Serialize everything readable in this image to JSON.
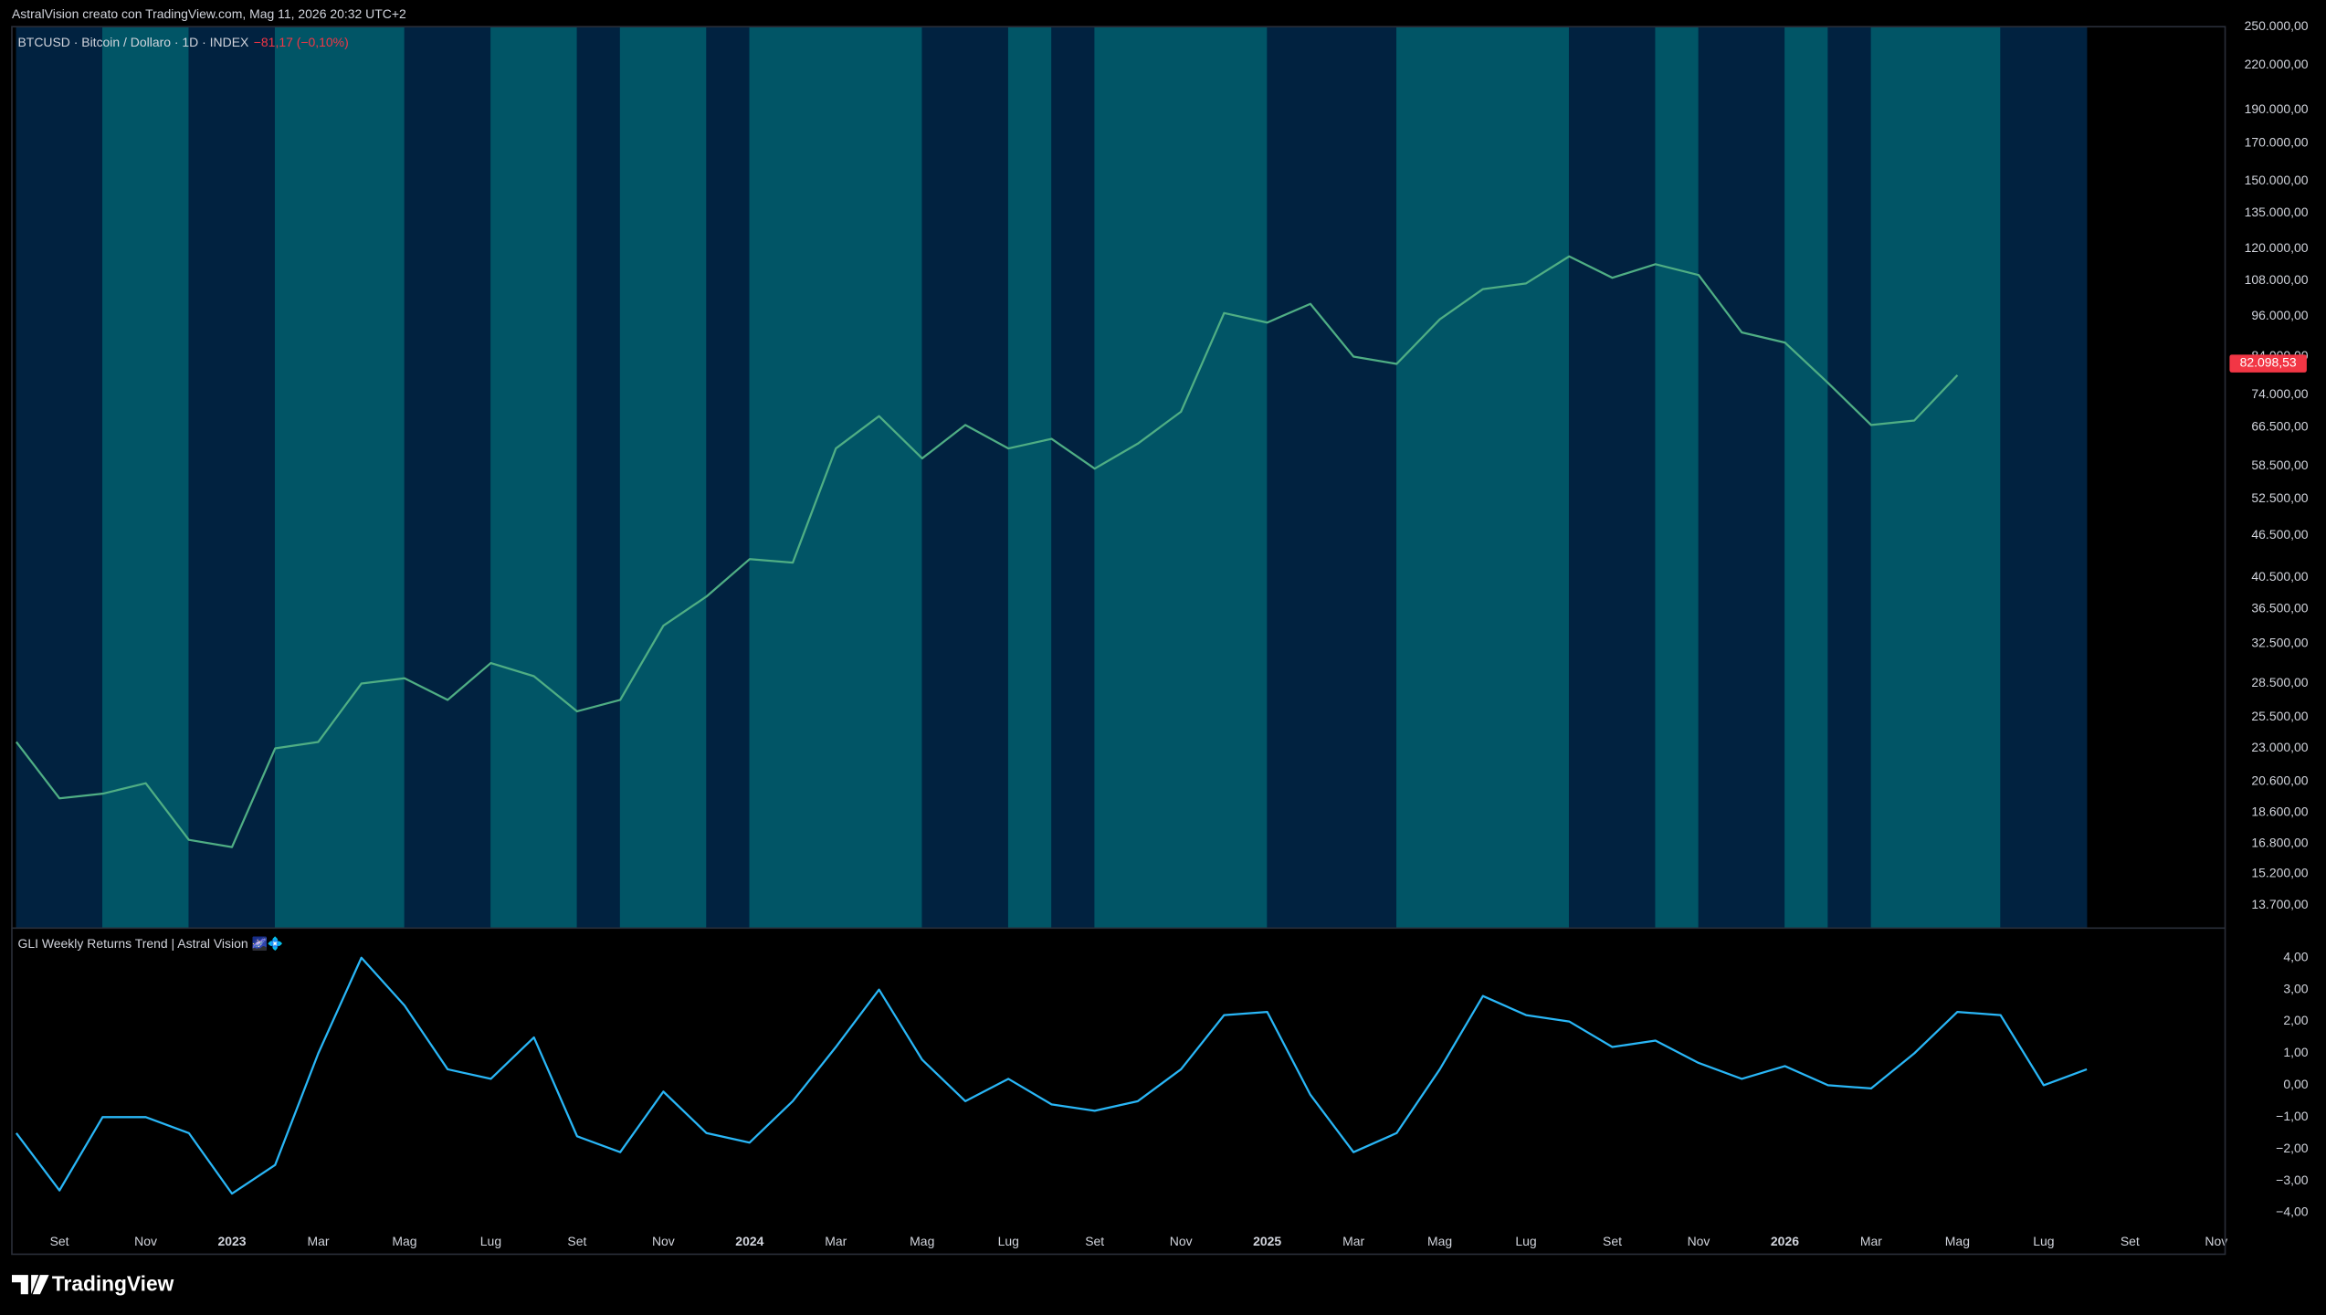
{
  "header": {
    "text": "AstralVision creato con TradingView.com, Mag 11, 2026 20:32 UTC+2"
  },
  "footer": {
    "logo": "TradingView"
  },
  "chart_data": [
    {
      "type": "line",
      "title": "BTCUSD · Bitcoin / Dollaro · 1D · INDEX",
      "change": "−81,17 (−0,10%)",
      "log_scale": true,
      "xlim": [
        "2022-08",
        "2026-11"
      ],
      "ylim": [
        12700,
        250000
      ],
      "x": [
        "2022-08",
        "2022-09",
        "2022-10",
        "2022-11",
        "2022-12",
        "2023-01",
        "2023-02",
        "2023-03",
        "2023-04",
        "2023-05",
        "2023-06",
        "2023-07",
        "2023-08",
        "2023-09",
        "2023-10",
        "2023-11",
        "2023-12",
        "2024-01",
        "2024-02",
        "2024-03",
        "2024-04",
        "2024-05",
        "2024-06",
        "2024-07",
        "2024-08",
        "2024-09",
        "2024-10",
        "2024-11",
        "2024-12",
        "2025-01",
        "2025-02",
        "2025-03",
        "2025-04",
        "2025-05",
        "2025-06",
        "2025-07",
        "2025-08",
        "2025-09",
        "2025-10",
        "2025-11",
        "2025-12",
        "2026-01",
        "2026-02",
        "2026-03",
        "2026-04",
        "2026-05"
      ],
      "series": [
        {
          "color": "#4fae84",
          "values": [
            23500,
            19500,
            19800,
            20500,
            17000,
            16600,
            23000,
            23500,
            28500,
            29000,
            27000,
            30500,
            29200,
            26000,
            27000,
            34500,
            38000,
            43000,
            42500,
            62000,
            69000,
            60000,
            67000,
            62000,
            64000,
            58000,
            63000,
            70000,
            97000,
            94000,
            100000,
            84000,
            82000,
            95000,
            105000,
            107000,
            117000,
            109000,
            114000,
            110000,
            91000,
            88000,
            77000,
            67000,
            68000,
            79000
          ]
        }
      ],
      "last_value": {
        "value": 82098.53,
        "label": "82.098,53"
      },
      "last_value_color": "#f23645",
      "regions": [
        {
          "start": "2022-08",
          "end": "2022-10",
          "color": "#012240"
        },
        {
          "start": "2022-10",
          "end": "2022-12",
          "color": "#015566"
        },
        {
          "start": "2022-12",
          "end": "2023-02",
          "color": "#012240"
        },
        {
          "start": "2023-02",
          "end": "2023-05",
          "color": "#015566"
        },
        {
          "start": "2023-05",
          "end": "2023-07",
          "color": "#012240"
        },
        {
          "start": "2023-07",
          "end": "2023-09",
          "color": "#015566"
        },
        {
          "start": "2023-09",
          "end": "2023-10",
          "color": "#012240"
        },
        {
          "start": "2023-10",
          "end": "2023-12",
          "color": "#015566"
        },
        {
          "start": "2023-12",
          "end": "2024-01",
          "color": "#012240"
        },
        {
          "start": "2024-01",
          "end": "2024-05",
          "color": "#015566"
        },
        {
          "start": "2024-05",
          "end": "2024-07",
          "color": "#012240"
        },
        {
          "start": "2024-07",
          "end": "2024-08",
          "color": "#015566"
        },
        {
          "start": "2024-08",
          "end": "2024-09",
          "color": "#012240"
        },
        {
          "start": "2024-09",
          "end": "2025-01",
          "color": "#015566"
        },
        {
          "start": "2025-01",
          "end": "2025-04",
          "color": "#012240"
        },
        {
          "start": "2025-04",
          "end": "2025-08",
          "color": "#015566"
        },
        {
          "start": "2025-08",
          "end": "2025-10",
          "color": "#012240"
        },
        {
          "start": "2025-10",
          "end": "2025-11",
          "color": "#015566"
        },
        {
          "start": "2025-11",
          "end": "2026-01",
          "color": "#012240"
        },
        {
          "start": "2026-01",
          "end": "2026-02",
          "color": "#015566"
        },
        {
          "start": "2026-02",
          "end": "2026-03",
          "color": "#012240"
        },
        {
          "start": "2026-03",
          "end": "2026-06",
          "color": "#015566"
        },
        {
          "start": "2026-06",
          "end": "2026-08",
          "color": "#012240"
        }
      ],
      "yticks": [
        {
          "value": 250000,
          "label": "250.000,00"
        },
        {
          "value": 220000,
          "label": "220.000,00"
        },
        {
          "value": 190000,
          "label": "190.000,00"
        },
        {
          "value": 170000,
          "label": "170.000,00"
        },
        {
          "value": 150000,
          "label": "150.000,00"
        },
        {
          "value": 135000,
          "label": "135.000,00"
        },
        {
          "value": 120000,
          "label": "120.000,00"
        },
        {
          "value": 108000,
          "label": "108.000,00"
        },
        {
          "value": 96000,
          "label": "96.000,00"
        },
        {
          "value": 84000,
          "label": "84.000,00"
        },
        {
          "value": 74000,
          "label": "74.000,00"
        },
        {
          "value": 66500,
          "label": "66.500,00"
        },
        {
          "value": 58500,
          "label": "58.500,00"
        },
        {
          "value": 52500,
          "label": "52.500,00"
        },
        {
          "value": 46500,
          "label": "46.500,00"
        },
        {
          "value": 40500,
          "label": "40.500,00"
        },
        {
          "value": 36500,
          "label": "36.500,00"
        },
        {
          "value": 32500,
          "label": "32.500,00"
        },
        {
          "value": 28500,
          "label": "28.500,00"
        },
        {
          "value": 25500,
          "label": "25.500,00"
        },
        {
          "value": 23000,
          "label": "23.000,00"
        },
        {
          "value": 20600,
          "label": "20.600,00"
        },
        {
          "value": 18600,
          "label": "18.600,00"
        },
        {
          "value": 16800,
          "label": "16.800,00"
        },
        {
          "value": 15200,
          "label": "15.200,00"
        },
        {
          "value": 13700,
          "label": "13.700,00"
        }
      ]
    },
    {
      "type": "line",
      "title": "GLI Weekly Returns Trend | Astral Vision 🌌💠",
      "xlim": [
        "2022-08",
        "2026-11"
      ],
      "ylim": [
        -5.3,
        4.93
      ],
      "x": [
        "2022-08",
        "2022-09",
        "2022-10",
        "2022-11",
        "2022-12",
        "2023-01",
        "2023-02",
        "2023-03",
        "2023-04",
        "2023-05",
        "2023-06",
        "2023-07",
        "2023-08",
        "2023-09",
        "2023-10",
        "2023-11",
        "2023-12",
        "2024-01",
        "2024-02",
        "2024-03",
        "2024-04",
        "2024-05",
        "2024-06",
        "2024-07",
        "2024-08",
        "2024-09",
        "2024-10",
        "2024-11",
        "2024-12",
        "2025-01",
        "2025-02",
        "2025-03",
        "2025-04",
        "2025-05",
        "2025-06",
        "2025-07",
        "2025-08",
        "2025-09",
        "2025-10",
        "2025-11",
        "2025-12",
        "2026-01",
        "2026-02",
        "2026-03",
        "2026-04",
        "2026-05",
        "2026-06",
        "2026-07",
        "2026-08"
      ],
      "series": [
        {
          "color": "#29b6f6",
          "values": [
            -1.5,
            -3.3,
            -1.0,
            -1.0,
            -1.5,
            -3.4,
            -2.5,
            1.0,
            4.0,
            2.5,
            0.5,
            0.2,
            1.5,
            -1.6,
            -2.1,
            -0.2,
            -1.5,
            -1.8,
            -0.5,
            1.2,
            3.0,
            0.8,
            -0.5,
            0.2,
            -0.6,
            -0.8,
            -0.5,
            0.5,
            2.2,
            2.3,
            -0.3,
            -2.1,
            -1.5,
            0.5,
            2.8,
            2.2,
            2.0,
            1.2,
            1.4,
            0.7,
            0.2,
            0.6,
            0.0,
            -0.1,
            1.0,
            2.3,
            2.2,
            0.0,
            0.5
          ]
        }
      ],
      "yticks": [
        {
          "value": 4,
          "label": "4,00"
        },
        {
          "value": 3,
          "label": "3,00"
        },
        {
          "value": 2,
          "label": "2,00"
        },
        {
          "value": 1,
          "label": "1,00"
        },
        {
          "value": 0,
          "label": "0,00"
        },
        {
          "value": -1,
          "label": "−1,00"
        },
        {
          "value": -2,
          "label": "−2,00"
        },
        {
          "value": -3,
          "label": "−3,00"
        },
        {
          "value": -4,
          "label": "−4,00"
        }
      ],
      "xticks": [
        {
          "value": "2022-09",
          "label": "Set"
        },
        {
          "value": "2022-11",
          "label": "Nov"
        },
        {
          "value": "2023-01",
          "label": "2023"
        },
        {
          "value": "2023-03",
          "label": "Mar"
        },
        {
          "value": "2023-05",
          "label": "Mag"
        },
        {
          "value": "2023-07",
          "label": "Lug"
        },
        {
          "value": "2023-09",
          "label": "Set"
        },
        {
          "value": "2023-11",
          "label": "Nov"
        },
        {
          "value": "2024-01",
          "label": "2024"
        },
        {
          "value": "2024-03",
          "label": "Mar"
        },
        {
          "value": "2024-05",
          "label": "Mag"
        },
        {
          "value": "2024-07",
          "label": "Lug"
        },
        {
          "value": "2024-09",
          "label": "Set"
        },
        {
          "value": "2024-11",
          "label": "Nov"
        },
        {
          "value": "2025-01",
          "label": "2025"
        },
        {
          "value": "2025-03",
          "label": "Mar"
        },
        {
          "value": "2025-05",
          "label": "Mag"
        },
        {
          "value": "2025-07",
          "label": "Lug"
        },
        {
          "value": "2025-09",
          "label": "Set"
        },
        {
          "value": "2025-11",
          "label": "Nov"
        },
        {
          "value": "2026-01",
          "label": "2026"
        },
        {
          "value": "2026-03",
          "label": "Mar"
        },
        {
          "value": "2026-05",
          "label": "Mag"
        },
        {
          "value": "2026-07",
          "label": "Lug"
        },
        {
          "value": "2026-09",
          "label": "Set"
        },
        {
          "value": "2026-11",
          "label": "Nov"
        }
      ]
    }
  ]
}
